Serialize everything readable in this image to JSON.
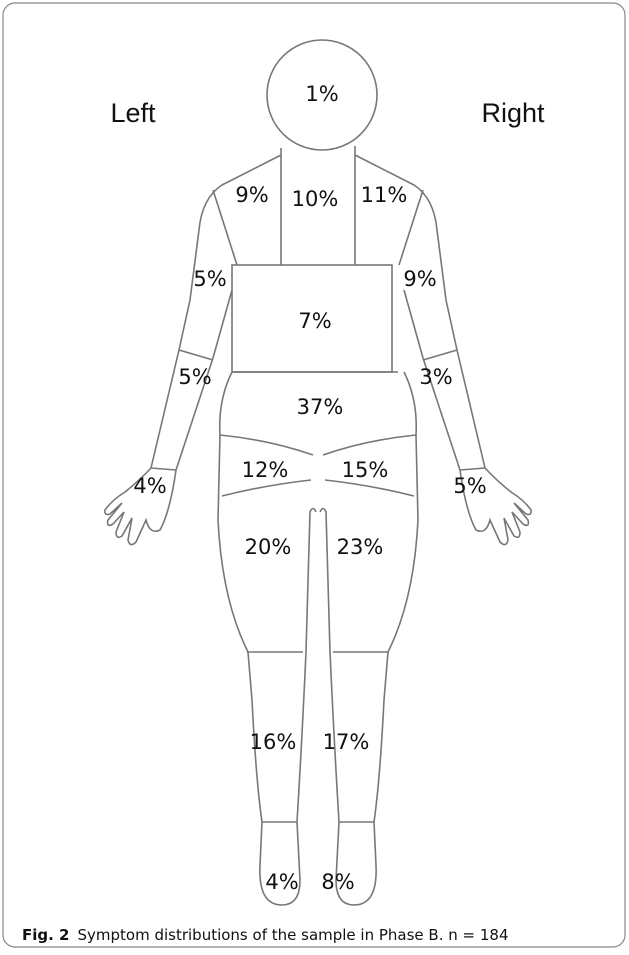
{
  "sides": {
    "left": "Left",
    "right": "Right"
  },
  "regions": [
    "1%",
    "9%",
    "10%",
    "11%",
    "5%",
    "9%",
    "7%",
    "5%",
    "3%",
    "37%",
    "12%",
    "15%",
    "4%",
    "5%",
    "20%",
    "23%",
    "16%",
    "17%",
    "4%",
    "8%"
  ],
  "caption": {
    "label": "Fig. 2",
    "text": "Symptom distributions of the sample in Phase B. n = 184"
  }
}
